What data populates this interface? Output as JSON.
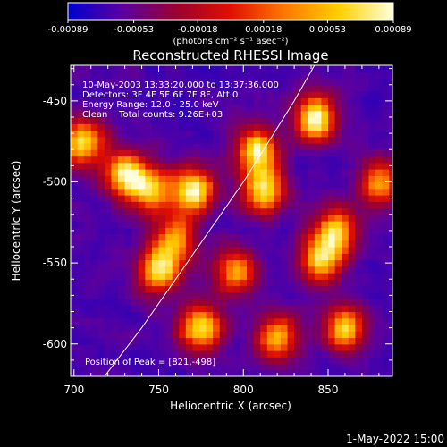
{
  "colorbar": {
    "min_label": "-0.00089",
    "labels": [
      "-0.00089",
      "-0.00053",
      "-0.00018",
      "0.00018",
      "0.00053",
      "0.00089"
    ],
    "values": [
      -0.00089,
      -0.00053,
      -0.00018,
      0.00018,
      0.00053,
      0.00089
    ],
    "units": "(photons cm⁻² s⁻¹ asec⁻²)",
    "colors": [
      "#0000d0",
      "#5a00a0",
      "#9a0030",
      "#e01000",
      "#ff7800",
      "#ffd000",
      "#ffffe0"
    ]
  },
  "chart_data": {
    "type": "heatmap",
    "title": "Reconstructed RHESSI Image",
    "xlabel": "Heliocentric X (arcsec)",
    "ylabel": "Heliocentric Y (arcsec)",
    "xlim": [
      698,
      888
    ],
    "ylim": [
      -620,
      -428
    ],
    "xticks": [
      700,
      750,
      800,
      850
    ],
    "yticks": [
      -450,
      -500,
      -550,
      -600
    ],
    "xtick_labels": [
      "700",
      "750",
      "800",
      "850"
    ],
    "ytick_labels": [
      "-450",
      "-500",
      "-550",
      "-600"
    ],
    "limb_curve": [
      [
        718,
        -620
      ],
      [
        740,
        -590
      ],
      [
        760,
        -560
      ],
      [
        780,
        -530
      ],
      [
        800,
        -500
      ],
      [
        815,
        -475
      ],
      [
        830,
        -450
      ],
      [
        842,
        -428
      ]
    ],
    "bright_sources": [
      {
        "x": 705,
        "y": -475,
        "intensity": 0.85
      },
      {
        "x": 730,
        "y": -495,
        "intensity": 0.9
      },
      {
        "x": 745,
        "y": -505,
        "intensity": 0.7
      },
      {
        "x": 770,
        "y": -505,
        "intensity": 0.95
      },
      {
        "x": 750,
        "y": -555,
        "intensity": 0.85
      },
      {
        "x": 808,
        "y": -480,
        "intensity": 0.9
      },
      {
        "x": 812,
        "y": -505,
        "intensity": 0.85
      },
      {
        "x": 842,
        "y": -460,
        "intensity": 1.0
      },
      {
        "x": 855,
        "y": -530,
        "intensity": 0.8
      },
      {
        "x": 845,
        "y": -548,
        "intensity": 0.8
      },
      {
        "x": 795,
        "y": -555,
        "intensity": 0.75
      },
      {
        "x": 775,
        "y": -590,
        "intensity": 0.9
      },
      {
        "x": 820,
        "y": -595,
        "intensity": 0.8
      },
      {
        "x": 860,
        "y": -590,
        "intensity": 0.85
      },
      {
        "x": 760,
        "y": -535,
        "intensity": 0.7
      },
      {
        "x": 880,
        "y": -500,
        "intensity": 0.7
      }
    ]
  },
  "annotations": {
    "line1": "10-May-2003 13:33:20.000 to 13:37:36.000",
    "line2": "Detectors: 3F 4F 5F 6F 7F 8F, Att 0",
    "line3": "Energy Range: 12.0 - 25.0 keV",
    "line4": "Clean    Total counts: 9.26E+03",
    "peak": "Position of Peak = [821,-498]"
  },
  "footer": {
    "timestamp": "1-May-2022 15:00"
  }
}
